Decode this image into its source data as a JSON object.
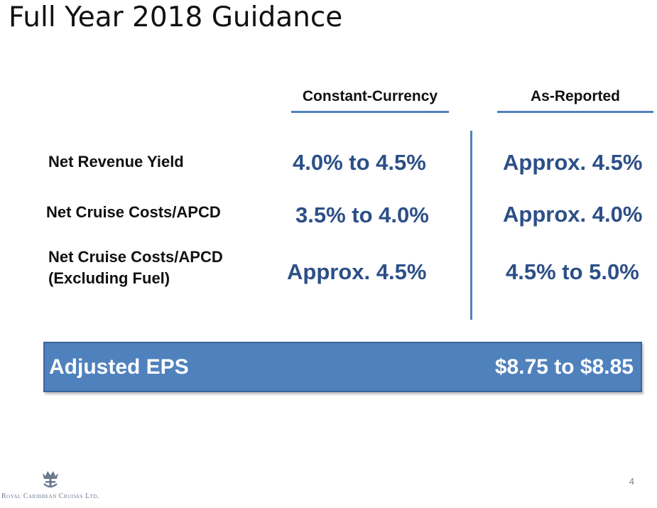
{
  "slide": {
    "title": "Full Year 2018 Guidance",
    "page_number": "4"
  },
  "columns": {
    "constant_currency": "Constant-Currency",
    "as_reported": "As-Reported"
  },
  "rows": [
    {
      "label": "Net Revenue Yield",
      "constant_currency": "4.0% to 4.5%",
      "as_reported": "Approx. 4.5%"
    },
    {
      "label": "Net Cruise Costs/APCD",
      "constant_currency": "3.5% to 4.0%",
      "as_reported": "Approx. 4.0%"
    },
    {
      "label_line1": "Net Cruise Costs/APCD",
      "label_line2": "(Excluding Fuel)",
      "constant_currency": "Approx. 4.5%",
      "as_reported": "4.5% to 5.0%"
    }
  ],
  "eps": {
    "label": "Adjusted EPS",
    "value": "$8.75 to $8.85"
  },
  "footer": {
    "logo_text": "Royal Caribbean Cruises Ltd.",
    "logo_icon": "crown-anchor-icon"
  },
  "colors": {
    "accent_blue": "#4f81bd",
    "value_blue": "#2c4f87"
  }
}
